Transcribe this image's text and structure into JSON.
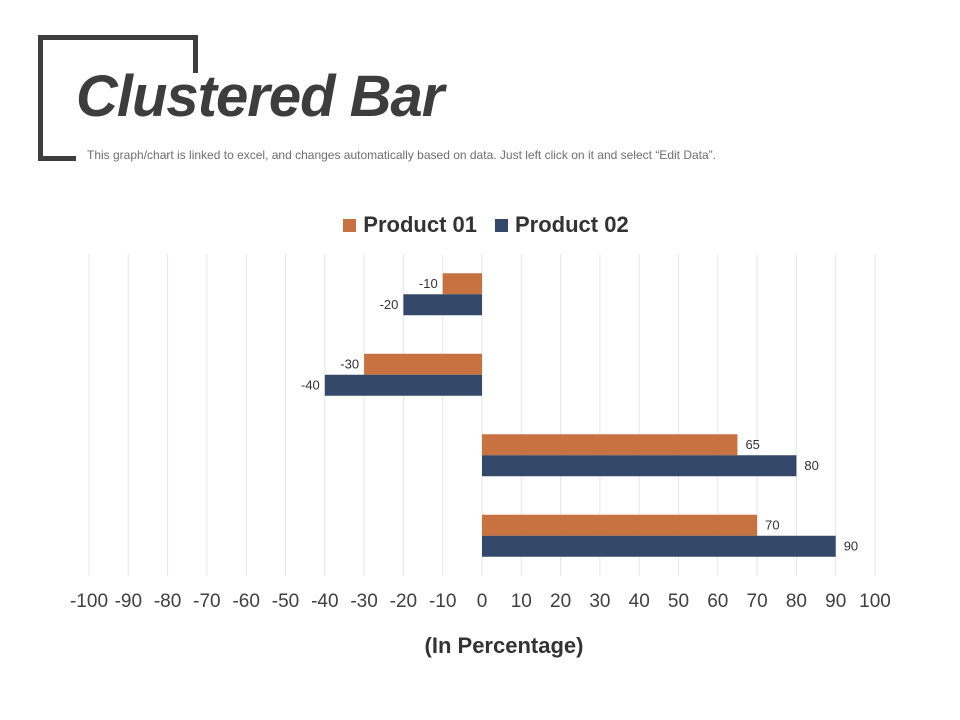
{
  "header": {
    "title": "Clustered Bar",
    "subtitle": "This graph/chart is linked to excel, and changes automatically based on data. Just left click on it and select “Edit Data”."
  },
  "chart_data": {
    "type": "bar",
    "orientation": "horizontal",
    "categories": [
      "",
      "",
      "",
      ""
    ],
    "series": [
      {
        "name": "Product 01",
        "color": "#c87141",
        "values": [
          -10,
          -30,
          65,
          70
        ]
      },
      {
        "name": "Product 02",
        "color": "#34486a",
        "values": [
          -20,
          -40,
          80,
          90
        ]
      }
    ],
    "xlabel": "(In Percentage)",
    "ylabel": "",
    "xlim": [
      -100,
      100
    ],
    "xticks": [
      -100,
      -90,
      -80,
      -70,
      -60,
      -50,
      -40,
      -30,
      -20,
      -10,
      0,
      10,
      20,
      30,
      40,
      50,
      60,
      70,
      80,
      90,
      100
    ],
    "legend": "top-center",
    "grid": "vertical",
    "data_labels": true
  }
}
